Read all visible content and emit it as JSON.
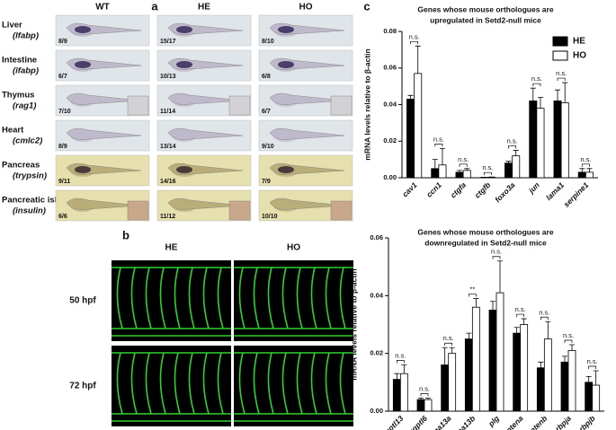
{
  "panel_a": {
    "label": "a",
    "columns": [
      "WT",
      "HE",
      "HO"
    ],
    "rows": [
      {
        "tissue": "Liver",
        "gene": "(lfabp)",
        "counts": [
          "8/9",
          "15/17",
          "8/10"
        ]
      },
      {
        "tissue": "Intestine",
        "gene": "(ifabp)",
        "counts": [
          "6/7",
          "10/13",
          "6/8"
        ]
      },
      {
        "tissue": "Thymus",
        "gene": "(rag1)",
        "counts": [
          "7/10",
          "11/14",
          "6/7"
        ]
      },
      {
        "tissue": "Heart",
        "gene": "(cmlc2)",
        "counts": [
          "8/9",
          "13/14",
          "9/10"
        ]
      },
      {
        "tissue": "Pancreas",
        "gene": "(trypsin)",
        "counts": [
          "9/11",
          "14/16",
          "7/9"
        ]
      },
      {
        "tissue": "Pancreatic islet",
        "gene": "(insulin)",
        "counts": [
          "6/6",
          "11/12",
          "10/10"
        ]
      }
    ]
  },
  "panel_b": {
    "label": "b",
    "columns": [
      "HE",
      "HO"
    ],
    "rows": [
      "50 hpf",
      "72 hpf"
    ]
  },
  "panel_c": {
    "label": "c"
  },
  "chart_data": [
    {
      "type": "bar",
      "title": [
        "Genes whose mouse orthologues are",
        "upregulated in Setd2-null mice"
      ],
      "ylabel": "mRNA levels relative to β-actin",
      "categories": [
        "cav1",
        "ccn1",
        "ctgfa",
        "ctgfb",
        "foxo3a",
        "jun",
        "lama1",
        "serpine1"
      ],
      "series": [
        {
          "name": "HE",
          "color": "#000000",
          "values": [
            0.043,
            0.005,
            0.003,
            0.0002,
            0.008,
            0.042,
            0.042,
            0.003
          ],
          "errors": [
            0.002,
            0.005,
            0.001,
            0.0001,
            0.001,
            0.007,
            0.006,
            0.002
          ]
        },
        {
          "name": "HO",
          "color": "#ffffff",
          "values": [
            0.057,
            0.007,
            0.004,
            0.0003,
            0.012,
            0.038,
            0.041,
            0.003
          ],
          "errors": [
            0.015,
            0.009,
            0.001,
            0.0001,
            0.003,
            0.006,
            0.011,
            0.002
          ]
        }
      ],
      "annotations": [
        "n.s.",
        "n.s.",
        "n.s.",
        "n.s.",
        "n.s.",
        "n.s.",
        "n.s.",
        "n.s."
      ],
      "ylim": [
        0,
        0.08
      ],
      "yticks": [
        {
          "value": 0,
          "label": "0.00"
        },
        0.02,
        0.04,
        0.06,
        0.08
      ],
      "legend": "upper right"
    },
    {
      "type": "bar",
      "title": [
        "Genes whose mouse orthologues are",
        "downregulated in Setd2-null mice"
      ],
      "ylabel": "mRNA levels relative to β-actin",
      "categories": [
        "angptl13",
        "angptl6",
        "gna13a",
        "gna13b",
        "plg",
        "ptena",
        "ptenb",
        "rbpja",
        "rbpjb"
      ],
      "series": [
        {
          "name": "HE",
          "color": "#000000",
          "values": [
            0.011,
            0.004,
            0.016,
            0.025,
            0.035,
            0.027,
            0.015,
            0.017,
            0.01
          ],
          "errors": [
            0.002,
            0.0005,
            0.006,
            0.002,
            0.003,
            0.002,
            0.002,
            0.002,
            0.002
          ]
        },
        {
          "name": "HO",
          "color": "#ffffff",
          "values": [
            0.013,
            0.004,
            0.02,
            0.036,
            0.041,
            0.03,
            0.025,
            0.021,
            0.009
          ],
          "errors": [
            0.003,
            0.0005,
            0.002,
            0.003,
            0.011,
            0.002,
            0.006,
            0.002,
            0.005
          ]
        }
      ],
      "annotations": [
        "n.s.",
        "n.s.",
        "n.s.",
        "**",
        "n.s.",
        "n.s.",
        "n.s.",
        "n.s.",
        "n.s."
      ],
      "ylim": [
        0,
        0.06
      ],
      "yticks": [
        {
          "value": 0,
          "label": "0.00"
        },
        0.02,
        0.04,
        0.06
      ]
    }
  ]
}
